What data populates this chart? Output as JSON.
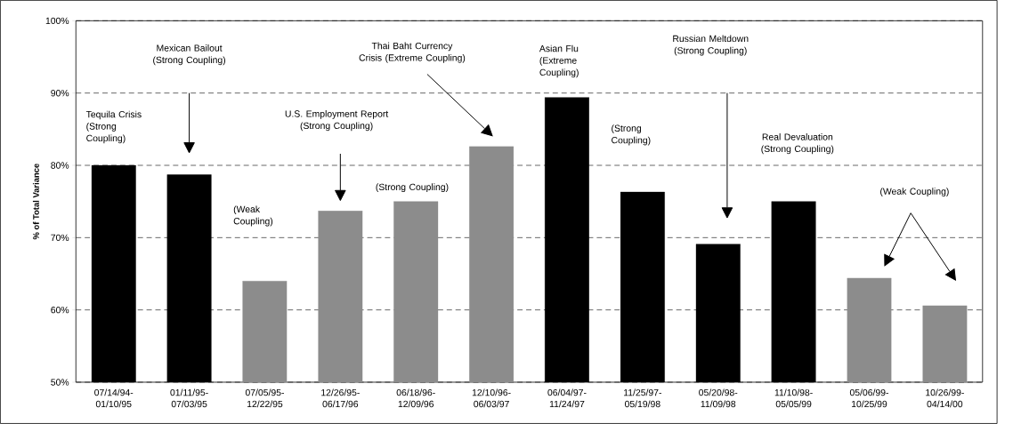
{
  "chart_data": {
    "type": "bar",
    "ylabel": "% of Total Variance",
    "categories": [
      "07/14/94-01/10/95",
      "01/11/95-07/03/95",
      "07/05/95-12/22/95",
      "12/26/95-06/17/96",
      "06/18/96-12/09/96",
      "12/10/96-06/03/97",
      "06/04/97-11/24/97",
      "11/25/97-05/19/98",
      "05/20/98-11/09/98",
      "11/10/98-05/05/99",
      "05/06/99-10/25/99",
      "10/26/99-04/14/00"
    ],
    "values": [
      80.0,
      78.7,
      64.0,
      73.7,
      75.0,
      82.6,
      89.4,
      76.3,
      69.1,
      75.0,
      64.4,
      60.6
    ],
    "colors": [
      "#000000",
      "#000000",
      "#8c8c8c",
      "#8c8c8c",
      "#8c8c8c",
      "#8c8c8c",
      "#000000",
      "#000000",
      "#000000",
      "#000000",
      "#8c8c8c",
      "#8c8c8c"
    ],
    "ylim": [
      50,
      100
    ],
    "yticks": [
      {
        "value": 50,
        "label": "50%"
      },
      {
        "value": 60,
        "label": "60%"
      },
      {
        "value": 70,
        "label": "70%"
      },
      {
        "value": 80,
        "label": "80%"
      },
      {
        "value": 90,
        "label": "90%"
      },
      {
        "value": 100,
        "label": "100%"
      }
    ],
    "grid": "y",
    "annotations": [
      "Tequila Crisis (Strong Coupling)",
      "Mexican Bailout (Strong Coupling)",
      "(Weak Coupling)",
      "U.S. Employment Report (Strong Coupling)",
      "(Strong Coupling)",
      "Thai Baht Currency Crisis (Extreme Coupling)",
      "Asian Flu (Extreme Coupling)",
      "(Strong Coupling)",
      "Russian Meltdown (Strong Coupling)",
      "Real Devaluation (Strong Coupling)",
      "(Weak Coupling)"
    ]
  }
}
